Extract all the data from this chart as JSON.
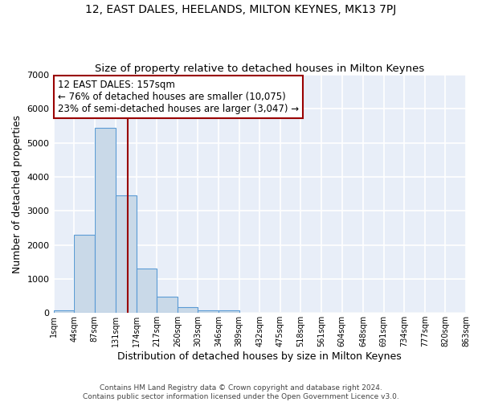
{
  "title": "12, EAST DALES, HEELANDS, MILTON KEYNES, MK13 7PJ",
  "subtitle": "Size of property relative to detached houses in Milton Keynes",
  "xlabel": "Distribution of detached houses by size in Milton Keynes",
  "ylabel": "Number of detached properties",
  "bin_edges": [
    1,
    44,
    87,
    131,
    174,
    217,
    260,
    303,
    346,
    389,
    432,
    475,
    518,
    561,
    604,
    648,
    691,
    734,
    777,
    820,
    863
  ],
  "bar_heights": [
    75,
    2300,
    5450,
    3450,
    1300,
    475,
    175,
    85,
    85,
    0,
    0,
    0,
    0,
    0,
    0,
    0,
    0,
    0,
    0,
    0
  ],
  "bar_color": "#c9d9e8",
  "bar_edgecolor": "#5b9bd5",
  "vline_x": 157,
  "vline_color": "#990000",
  "annotation_text": "12 EAST DALES: 157sqm\n← 76% of detached houses are smaller (10,075)\n23% of semi-detached houses are larger (3,047) →",
  "annotation_box_color": "#ffffff",
  "annotation_box_edgecolor": "#990000",
  "ylim": [
    0,
    7000
  ],
  "xlim": [
    1,
    863
  ],
  "tick_labels": [
    "1sqm",
    "44sqm",
    "87sqm",
    "131sqm",
    "174sqm",
    "217sqm",
    "260sqm",
    "303sqm",
    "346sqm",
    "389sqm",
    "432sqm",
    "475sqm",
    "518sqm",
    "561sqm",
    "604sqm",
    "648sqm",
    "691sqm",
    "734sqm",
    "777sqm",
    "820sqm",
    "863sqm"
  ],
  "background_color": "#e8eef8",
  "grid_color": "#ffffff",
  "footer_text": "Contains HM Land Registry data © Crown copyright and database right 2024.\nContains public sector information licensed under the Open Government Licence v3.0.",
  "title_fontsize": 10,
  "subtitle_fontsize": 9.5,
  "xlabel_fontsize": 9,
  "ylabel_fontsize": 9,
  "annotation_fontsize": 8.5
}
